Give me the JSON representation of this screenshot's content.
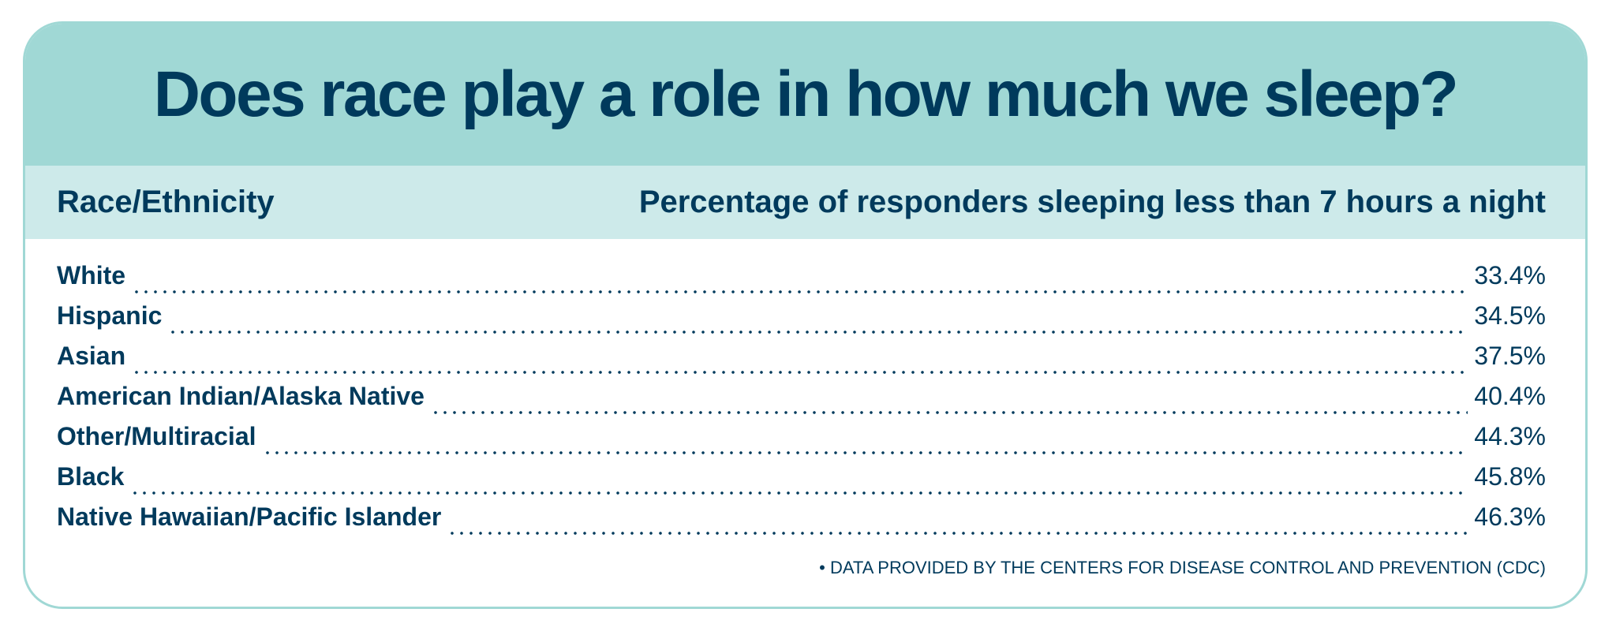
{
  "title": "Does race play a role in how much we sleep?",
  "header": {
    "col1": "Race/Ethnicity",
    "col2": "Percentage of responders sleeping less than 7 hours a night"
  },
  "rows": [
    {
      "label": "White",
      "value": "33.4%"
    },
    {
      "label": "Hispanic",
      "value": "34.5%"
    },
    {
      "label": "Asian",
      "value": "37.5%"
    },
    {
      "label": "American Indian/Alaska Native",
      "value": "40.4%"
    },
    {
      "label": "Other/Multiracial",
      "value": "44.3%"
    },
    {
      "label": "Black",
      "value": "45.8%"
    },
    {
      "label": "Native Hawaiian/Pacific Islander",
      "value": "46.3%"
    }
  ],
  "footnote": "• DATA PROVIDED BY THE CENTERS FOR DISEASE CONTROL AND PREVENTION (CDC)",
  "colors": {
    "header": "#a0d8d5",
    "subheader": "#cdeaea",
    "text": "#003a5c"
  }
}
